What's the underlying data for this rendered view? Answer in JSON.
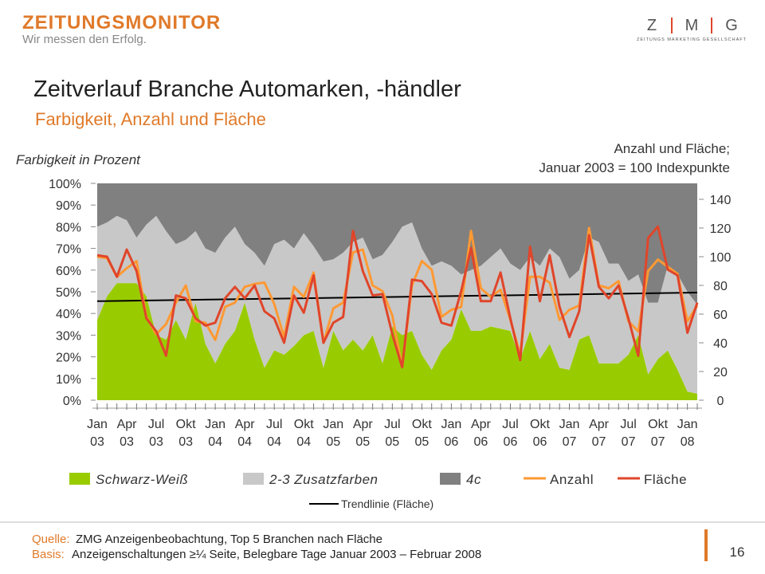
{
  "header": {
    "brand": "ZEITUNGSMONITOR",
    "slogan": "Wir messen den Erfolg.",
    "zmg_letters": [
      "Z",
      "M",
      "G"
    ],
    "zmg_name": "ZEITUNGS MARKETING GESELLSCHAFT"
  },
  "chart_data": {
    "type": "stacked-area-line",
    "title": "Zeitverlauf Branche Automarken, -händler",
    "subtitle": "Farbigkeit, Anzahl und Fläche",
    "y_label": "Farbigkeit in Prozent",
    "y2_label": [
      "Anzahl und Fläche;",
      "Januar 2003 = 100 Indexpunkte"
    ],
    "categories": [
      "Jan 03",
      null,
      null,
      "Apr 03",
      null,
      null,
      "Jul 03",
      null,
      null,
      "Okt 03",
      null,
      null,
      "Jan 04",
      null,
      null,
      "Apr 04",
      null,
      null,
      "Jul 04",
      null,
      null,
      "Okt 04",
      null,
      null,
      "Jan 05",
      null,
      null,
      "Apr 05",
      null,
      null,
      "Jul 05",
      null,
      null,
      "Okt 05",
      null,
      null,
      "Jan 06",
      null,
      null,
      "Apr 06",
      null,
      null,
      "Jul 06",
      null,
      null,
      "Okt 06",
      null,
      null,
      "Jan 07",
      null,
      null,
      "Apr 07",
      null,
      null,
      "Jul 07",
      null,
      null,
      "Okt 07",
      null,
      null,
      "Jan 08",
      null
    ],
    "ylim": [
      0,
      100
    ],
    "yticks": [
      {
        "value": 0,
        "label": "0%"
      },
      {
        "value": 10,
        "label": "10%"
      },
      {
        "value": 20,
        "label": "20%"
      },
      {
        "value": 30,
        "label": "30%"
      },
      {
        "value": 40,
        "label": "40%"
      },
      {
        "value": 50,
        "label": "50%"
      },
      {
        "value": 60,
        "label": "60%"
      },
      {
        "value": 70,
        "label": "70%"
      },
      {
        "value": 80,
        "label": "80%"
      },
      {
        "value": 90,
        "label": "90%"
      },
      {
        "value": 100,
        "label": "100%"
      }
    ],
    "y2lim": [
      0,
      150
    ],
    "y2ticks": [
      0,
      20,
      40,
      60,
      80,
      100,
      120,
      140
    ],
    "series": [
      {
        "name": "Schwarz-Weiß",
        "color": "#99cc00",
        "kind": "area",
        "values": [
          37,
          48,
          54,
          54,
          54,
          48,
          30,
          28,
          37,
          28,
          45,
          26,
          17,
          26,
          32,
          45,
          28,
          15,
          23,
          21,
          25,
          30,
          32,
          15,
          32,
          23,
          28,
          23,
          30,
          17,
          34,
          30,
          32,
          21,
          14,
          23,
          28,
          42,
          32,
          32,
          34,
          33,
          32,
          19,
          32,
          19,
          26,
          15,
          14,
          28,
          30,
          17,
          17,
          17,
          21,
          30,
          12,
          19,
          23,
          14,
          4,
          3
        ]
      },
      {
        "name": "2-3 Zusatzfarben",
        "color": "#c8c8c8",
        "kind": "area",
        "values": [
          43,
          34,
          31,
          29,
          21,
          33,
          55,
          50,
          35,
          46,
          33,
          44,
          51,
          49,
          48,
          27,
          40,
          47,
          49,
          53,
          45,
          47,
          39,
          49,
          33,
          45,
          45,
          52,
          35,
          50,
          39,
          50,
          50,
          49,
          48,
          41,
          34,
          16,
          28,
          30,
          32,
          37,
          31,
          41,
          34,
          43,
          44,
          51,
          42,
          32,
          45,
          56,
          46,
          46,
          34,
          28,
          33,
          26,
          39,
          44,
          46,
          41
        ]
      },
      {
        "name": "4c",
        "color": "#808080",
        "kind": "area",
        "values": [
          20,
          18,
          15,
          17,
          25,
          19,
          15,
          22,
          28,
          26,
          22,
          30,
          32,
          25,
          20,
          28,
          32,
          38,
          28,
          26,
          30,
          23,
          29,
          36,
          35,
          32,
          27,
          25,
          35,
          33,
          27,
          20,
          18,
          30,
          38,
          36,
          38,
          42,
          40,
          38,
          34,
          30,
          37,
          40,
          34,
          38,
          30,
          34,
          44,
          40,
          25,
          27,
          37,
          37,
          45,
          42,
          55,
          55,
          38,
          42,
          50,
          56
        ]
      },
      {
        "name": "Anzahl",
        "color": "#ff9933",
        "kind": "line",
        "axis": "y2",
        "values": [
          100,
          99,
          86,
          92,
          97,
          58,
          46,
          53,
          68,
          80,
          55,
          54,
          42,
          65,
          68,
          79,
          81,
          82,
          67,
          44,
          79,
          72,
          89,
          40,
          64,
          68,
          103,
          105,
          80,
          76,
          59,
          23,
          80,
          97,
          91,
          58,
          63,
          65,
          118,
          78,
          72,
          77,
          56,
          32,
          86,
          86,
          82,
          56,
          63,
          66,
          120,
          80,
          78,
          83,
          55,
          48,
          90,
          98,
          93,
          88,
          55,
          66
        ]
      },
      {
        "name": "Fläche",
        "color": "#e0452a",
        "kind": "line",
        "axis": "y2",
        "values": [
          101,
          100,
          86,
          105,
          90,
          57,
          48,
          31,
          73,
          71,
          57,
          52,
          54,
          71,
          79,
          71,
          80,
          62,
          57,
          40,
          73,
          61,
          87,
          40,
          54,
          58,
          118,
          90,
          73,
          74,
          46,
          23,
          84,
          83,
          74,
          54,
          52,
          76,
          106,
          69,
          69,
          89,
          57,
          28,
          107,
          69,
          101,
          65,
          44,
          62,
          115,
          79,
          71,
          80,
          57,
          31,
          113,
          121,
          91,
          87,
          47,
          68
        ]
      }
    ],
    "trend": {
      "name": "Trendlinie (Fläche)",
      "color": "#000000",
      "axis": "y2",
      "values": [
        69,
        75
      ]
    }
  },
  "footer": {
    "source_label": "Quelle:",
    "source": "ZMG Anzeigenbeobachtung, Top 5 Branchen nach Fläche",
    "basis_label": "Basis:",
    "basis": "Anzeigenschaltungen ≥¼ Seite, Belegbare Tage Januar 2003 – Februar 2008",
    "page": "16"
  }
}
